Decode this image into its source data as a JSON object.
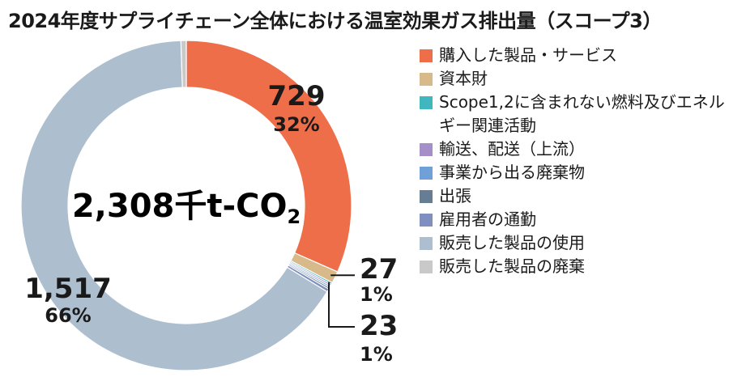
{
  "title": "2024年度サプライチェーン全体における温室効果ガス排出量（スコープ3）",
  "chart_data": {
    "type": "pie",
    "donut": true,
    "center_label": "2,308千t-CO",
    "center_label_subscript": "2",
    "unit": "千t-CO2",
    "total": 2308,
    "legend_position": "right",
    "slices": [
      {
        "name": "購入した製品・サービス",
        "value": 729,
        "percent": 32,
        "value_label": "729",
        "percent_label": "32%",
        "color": "#ee6e4a"
      },
      {
        "name": "資本財",
        "value": 27,
        "percent": 1,
        "value_label": "27",
        "percent_label": "1%",
        "color": "#d8b98a"
      },
      {
        "name": "Scope1,2に含まれない燃料及びエネルギー関連活動",
        "value": 4,
        "color": "#41b6bf"
      },
      {
        "name": "輸送、配送（上流）",
        "value": 4,
        "color": "#a58fc8"
      },
      {
        "name": "事業から出る廃棄物",
        "value": 4,
        "color": "#6fa0d8"
      },
      {
        "name": "出張",
        "value": 4,
        "color": "#667d93"
      },
      {
        "name": "雇用者の通勤",
        "value": 7,
        "color": "#7f8fbf"
      },
      {
        "name": "販売した製品の使用",
        "value": 1517,
        "percent": 66,
        "value_label": "1,517",
        "percent_label": "66%",
        "color": "#adbfcf"
      },
      {
        "name": "販売した製品の廃棄",
        "value": 12,
        "color": "#c9c9c9"
      }
    ],
    "group_label": {
      "value_label": "23",
      "percent_label": "1%"
    }
  }
}
